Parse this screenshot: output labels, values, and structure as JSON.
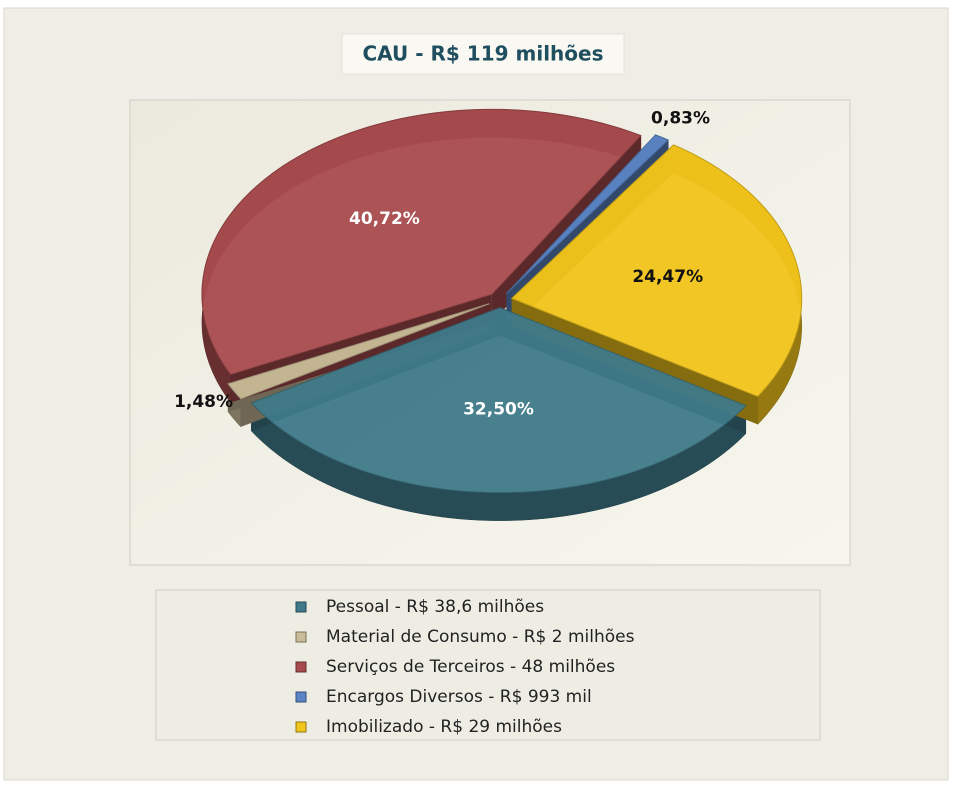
{
  "chart_data": {
    "type": "pie",
    "title": "CAU  - R$ 119 milhões",
    "categories": [
      "Pessoal - R$ 38,6 milhões",
      "Material de Consumo - R$ 2 milhões",
      "Serviços de Terceiros - 48 milhões",
      "Encargos Diversos - R$ 993 mil",
      "Imobilizado - R$ 29 milhões"
    ],
    "values": [
      32.5,
      1.48,
      40.72,
      0.83,
      24.47
    ],
    "value_labels": [
      "32,50%",
      "1,48%",
      "40,72%",
      "0,83%",
      "24,47%"
    ],
    "colors": [
      "#3f7a8a",
      "#c9bc98",
      "#a84b4e",
      "#5b84c4",
      "#f2c51b"
    ],
    "legend": "bottom"
  }
}
